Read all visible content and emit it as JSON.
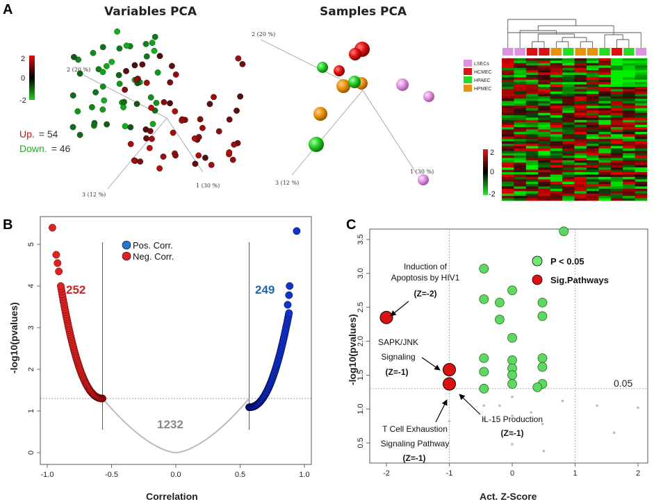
{
  "panels": {
    "a": "A",
    "b": "B",
    "c": "C"
  },
  "colors": {
    "red": "#cc1111",
    "green": "#22bb22",
    "blue": "#1133cc",
    "pink": "#e090e0",
    "orange": "#e8920a",
    "lightgreen": "#6ee86e"
  },
  "chart_data": [
    {
      "type": "scatter",
      "name": "variables-pca",
      "title": "Variables PCA",
      "axes": [
        "2 (20 %)",
        "1 (30 %)",
        "3 (12 %)"
      ],
      "colorbar": {
        "min": -2,
        "mid": 0,
        "max": 2,
        "labels": [
          "2",
          "0",
          "-2"
        ]
      },
      "up": {
        "label": "Up.",
        "value": "= 54",
        "count": 54
      },
      "down": {
        "label": "Down.",
        "value": "= 46",
        "count": 46
      }
    },
    {
      "type": "scatter",
      "name": "samples-pca",
      "title": "Samples PCA",
      "axes": [
        "2 (20 %)",
        "1 (30 %)",
        "3 (12 %)"
      ],
      "groups": [
        "LSECs",
        "HCMEC",
        "HPAEC",
        "HPMEC"
      ]
    },
    {
      "type": "heatmap",
      "name": "expression-heatmap",
      "legend": [
        "LSECs",
        "HCMEC",
        "HPAEC",
        "HPMEC"
      ],
      "column_groups": [
        "LSECs",
        "LSECs",
        "HCMEC",
        "HCMEC",
        "HPMEC",
        "HPAEC",
        "HPMEC",
        "HPMEC",
        "HPAEC",
        "HCMEC",
        "HPAEC",
        "LSECs"
      ],
      "colorbar": {
        "labels": [
          "2",
          "0",
          "-2"
        ]
      }
    },
    {
      "type": "scatter",
      "name": "volcano",
      "xlabel": "Correlation",
      "ylabel": "-log10(pvalues)",
      "xlim": [
        -1.0,
        1.0
      ],
      "ylim": [
        0,
        5.5
      ],
      "xticks": [
        "-1.0",
        "-0.5",
        "0.0",
        "0.5",
        "1.0"
      ],
      "xtick_values": [
        -1.0,
        -0.5,
        0.0,
        0.5,
        1.0
      ],
      "yticks": [
        "0",
        "1",
        "2",
        "3",
        "4",
        "5"
      ],
      "ytick_values": [
        0,
        1,
        2,
        3,
        4,
        5
      ],
      "threshold": 1.3,
      "corr_cutoff": 0.57,
      "series": [
        {
          "name": "Pos. Corr.",
          "count": 249,
          "count_label": "249",
          "x_range": [
            0.57,
            0.94
          ]
        },
        {
          "name": "Neg. Corr.",
          "count": 252,
          "count_label": "252",
          "x_range": [
            -0.57,
            -0.96
          ]
        }
      ],
      "nonsig_count_label": "1232",
      "outliers": [
        {
          "x": -0.96,
          "y": 5.4
        },
        {
          "x": 0.94,
          "y": 5.32
        }
      ]
    },
    {
      "type": "scatter",
      "name": "pathways",
      "xlabel": "Act. Z-Score",
      "ylabel": "-log10(pvalues)",
      "xlim": [
        -2.35,
        2.2
      ],
      "ylim": [
        0.2,
        3.75
      ],
      "xticks": [
        "-2",
        "-1",
        "0",
        "1",
        "2"
      ],
      "xtick_values": [
        -2,
        -1,
        0,
        1,
        2
      ],
      "yticks": [
        "0.5",
        "1.0",
        "1.5",
        "2.0",
        "2.5",
        "3.0",
        "3.5"
      ],
      "ytick_values": [
        0.5,
        1.0,
        1.5,
        2.0,
        2.5,
        3.0,
        3.5
      ],
      "threshold": 1.3,
      "threshold_label": "0.05",
      "legend": [
        "P < 0.05",
        "Sig.Pathways"
      ],
      "green_points": [
        {
          "x": -0.45,
          "y": 3.07
        },
        {
          "x": -0.45,
          "y": 2.62
        },
        {
          "x": -0.45,
          "y": 1.75
        },
        {
          "x": -0.45,
          "y": 1.55
        },
        {
          "x": -0.45,
          "y": 1.3
        },
        {
          "x": -0.2,
          "y": 2.57
        },
        {
          "x": -0.2,
          "y": 2.32
        },
        {
          "x": 0.0,
          "y": 2.75
        },
        {
          "x": 0.0,
          "y": 2.05
        },
        {
          "x": 0.0,
          "y": 1.72
        },
        {
          "x": 0.0,
          "y": 1.6
        },
        {
          "x": 0.0,
          "y": 1.5
        },
        {
          "x": 0.0,
          "y": 1.37
        },
        {
          "x": 0.48,
          "y": 2.57
        },
        {
          "x": 0.48,
          "y": 2.37
        },
        {
          "x": 0.48,
          "y": 1.75
        },
        {
          "x": 0.48,
          "y": 1.62
        },
        {
          "x": 0.48,
          "y": 1.37
        },
        {
          "x": 0.4,
          "y": 1.32
        },
        {
          "x": 0.82,
          "y": 3.62
        }
      ],
      "grey_points": [
        {
          "x": -0.45,
          "y": 1.05
        },
        {
          "x": -0.2,
          "y": 1.05
        },
        {
          "x": -0.45,
          "y": 0.85
        },
        {
          "x": 0.0,
          "y": 1.18
        },
        {
          "x": 0.0,
          "y": 0.9
        },
        {
          "x": 0.0,
          "y": 0.62
        },
        {
          "x": 0.0,
          "y": 0.48
        },
        {
          "x": 0.3,
          "y": 0.95
        },
        {
          "x": 0.48,
          "y": 0.78
        },
        {
          "x": 0.5,
          "y": 0.38
        },
        {
          "x": 1.35,
          "y": 1.05
        },
        {
          "x": 1.62,
          "y": 0.65
        },
        {
          "x": 2.0,
          "y": 1.02
        },
        {
          "x": -1.0,
          "y": 0.82
        },
        {
          "x": 0.8,
          "y": 1.12
        }
      ],
      "sig_points": [
        {
          "x": -2.0,
          "y": 2.35,
          "label_lines": [
            "Induction of",
            "Apoptosis by HIV1"
          ],
          "z": "(Z=-2)"
        },
        {
          "x": -1.0,
          "y": 1.58,
          "label_lines": [
            "SAPK/JNK",
            "Signaling"
          ],
          "z": "(Z=-1)"
        },
        {
          "x": -1.0,
          "y": 1.37,
          "label_lines": [
            "IL-15 Production"
          ],
          "z": "(Z=-1)"
        },
        {
          "x": -1.0,
          "y": 1.37,
          "label_lines": [
            "T Cell Exhaustion",
            "Signaling Pathway"
          ],
          "z": "(Z=-1)"
        }
      ]
    }
  ]
}
